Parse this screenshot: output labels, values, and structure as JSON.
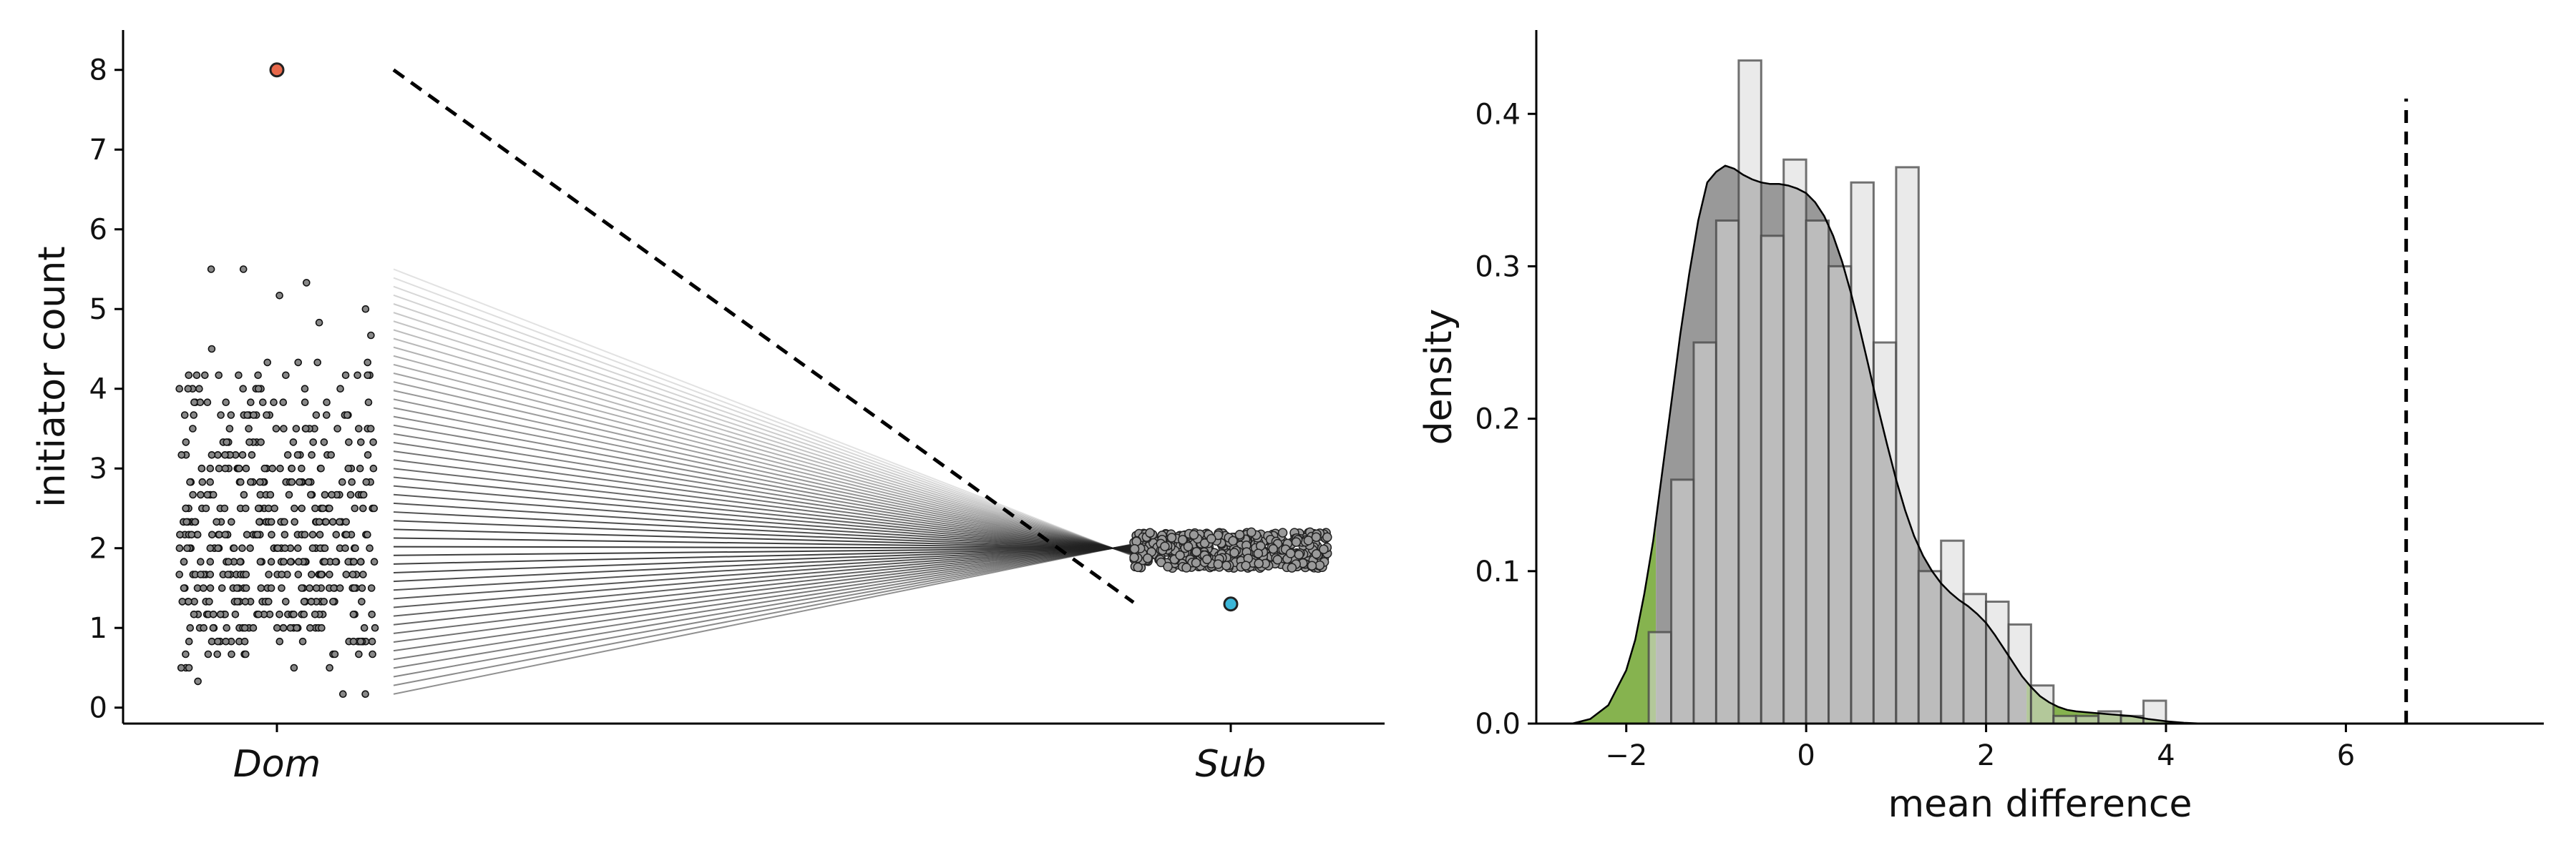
{
  "chart_data": [
    {
      "type": "scatter",
      "subtype": "paired-strip-plot",
      "title": "",
      "xlabel": "",
      "ylabel": "initiator count",
      "categories": [
        "Dom",
        "Sub"
      ],
      "ylim": [
        -0.2,
        8.5
      ],
      "yticks": [
        0,
        1,
        2,
        3,
        4,
        5,
        6,
        7,
        8
      ],
      "grid": false,
      "highlight": {
        "dom_value": 8.0,
        "sub_value": 1.3,
        "dom_color": "#e8684a",
        "sub_color": "#3bb6d8",
        "connector_style": "dashed"
      },
      "dom_jitter_values": [
        0.33,
        0.17,
        0.17,
        0.5,
        0.5,
        0.5,
        0.5,
        0.5,
        0.67,
        0.67,
        0.67,
        0.67,
        0.67,
        0.67,
        0.67,
        0.67,
        0.67,
        0.67,
        0.83,
        0.83,
        0.83,
        0.83,
        0.83,
        0.83,
        0.83,
        0.83,
        0.83,
        0.83,
        0.83,
        0.83,
        0.83,
        0.83,
        0.83,
        0.83,
        0.83,
        0.83,
        0.83,
        0.83,
        1.0,
        1.0,
        1.0,
        1.0,
        1.0,
        1.0,
        1.0,
        1.0,
        1.0,
        1.0,
        1.0,
        1.0,
        1.0,
        1.0,
        1.0,
        1.0,
        1.0,
        1.0,
        1.0,
        1.0,
        1.0,
        1.0,
        1.0,
        1.0,
        1.17,
        1.17,
        1.17,
        1.17,
        1.17,
        1.17,
        1.17,
        1.17,
        1.17,
        1.17,
        1.17,
        1.17,
        1.17,
        1.17,
        1.17,
        1.17,
        1.17,
        1.17,
        1.17,
        1.17,
        1.17,
        1.17,
        1.17,
        1.17,
        1.17,
        1.17,
        1.33,
        1.33,
        1.33,
        1.33,
        1.33,
        1.33,
        1.33,
        1.33,
        1.33,
        1.33,
        1.33,
        1.33,
        1.33,
        1.33,
        1.33,
        1.33,
        1.33,
        1.33,
        1.33,
        1.33,
        1.33,
        1.33,
        1.33,
        1.33,
        1.33,
        1.33,
        1.5,
        1.5,
        1.5,
        1.5,
        1.5,
        1.5,
        1.5,
        1.5,
        1.5,
        1.5,
        1.5,
        1.5,
        1.5,
        1.5,
        1.5,
        1.5,
        1.5,
        1.5,
        1.5,
        1.5,
        1.5,
        1.5,
        1.5,
        1.5,
        1.5,
        1.5,
        1.5,
        1.5,
        1.5,
        1.5,
        1.67,
        1.67,
        1.67,
        1.67,
        1.67,
        1.67,
        1.67,
        1.67,
        1.67,
        1.67,
        1.67,
        1.67,
        1.67,
        1.67,
        1.67,
        1.67,
        1.67,
        1.67,
        1.67,
        1.67,
        1.67,
        1.67,
        1.67,
        1.67,
        1.67,
        1.67,
        1.67,
        1.67,
        1.67,
        1.67,
        1.83,
        1.83,
        1.83,
        1.83,
        1.83,
        1.83,
        1.83,
        1.83,
        1.83,
        1.83,
        1.83,
        1.83,
        1.83,
        1.83,
        1.83,
        1.83,
        1.83,
        1.83,
        1.83,
        1.83,
        1.83,
        1.83,
        1.83,
        1.83,
        1.83,
        1.83,
        1.83,
        1.83,
        1.83,
        1.83,
        1.83,
        1.83,
        2.0,
        2.0,
        2.0,
        2.0,
        2.0,
        2.0,
        2.0,
        2.0,
        2.0,
        2.0,
        2.0,
        2.0,
        2.0,
        2.0,
        2.0,
        2.0,
        2.0,
        2.0,
        2.0,
        2.0,
        2.0,
        2.0,
        2.0,
        2.0,
        2.0,
        2.0,
        2.0,
        2.0,
        2.0,
        2.0,
        2.0,
        2.0,
        2.17,
        2.17,
        2.17,
        2.17,
        2.17,
        2.17,
        2.17,
        2.17,
        2.17,
        2.17,
        2.17,
        2.17,
        2.17,
        2.17,
        2.17,
        2.17,
        2.17,
        2.17,
        2.17,
        2.17,
        2.17,
        2.17,
        2.17,
        2.17,
        2.17,
        2.17,
        2.17,
        2.17,
        2.17,
        2.17,
        2.33,
        2.33,
        2.33,
        2.33,
        2.33,
        2.33,
        2.33,
        2.33,
        2.33,
        2.33,
        2.33,
        2.33,
        2.33,
        2.33,
        2.33,
        2.33,
        2.33,
        2.33,
        2.33,
        2.33,
        2.33,
        2.33,
        2.33,
        2.33,
        2.33,
        2.33,
        2.33,
        2.33,
        2.5,
        2.5,
        2.5,
        2.5,
        2.5,
        2.5,
        2.5,
        2.5,
        2.5,
        2.5,
        2.5,
        2.5,
        2.5,
        2.5,
        2.5,
        2.5,
        2.5,
        2.5,
        2.5,
        2.5,
        2.5,
        2.5,
        2.5,
        2.5,
        2.5,
        2.5,
        2.67,
        2.67,
        2.67,
        2.67,
        2.67,
        2.67,
        2.67,
        2.67,
        2.67,
        2.67,
        2.67,
        2.67,
        2.67,
        2.67,
        2.67,
        2.67,
        2.67,
        2.67,
        2.67,
        2.67,
        2.83,
        2.83,
        2.83,
        2.83,
        2.83,
        2.83,
        2.83,
        2.83,
        2.83,
        2.83,
        2.83,
        2.83,
        2.83,
        2.83,
        2.83,
        2.83,
        2.83,
        2.83,
        2.83,
        2.83,
        2.83,
        2.83,
        2.83,
        2.83,
        3.0,
        3.0,
        3.0,
        3.0,
        3.0,
        3.0,
        3.0,
        3.0,
        3.0,
        3.0,
        3.0,
        3.0,
        3.0,
        3.0,
        3.0,
        3.0,
        3.0,
        3.0,
        3.0,
        3.0,
        3.0,
        3.0,
        3.0,
        3.17,
        3.17,
        3.17,
        3.17,
        3.17,
        3.17,
        3.17,
        3.17,
        3.17,
        3.17,
        3.17,
        3.17,
        3.17,
        3.17,
        3.17,
        3.17,
        3.17,
        3.33,
        3.33,
        3.33,
        3.33,
        3.33,
        3.33,
        3.33,
        3.33,
        3.33,
        3.33,
        3.33,
        3.33,
        3.33,
        3.33,
        3.5,
        3.5,
        3.5,
        3.5,
        3.5,
        3.5,
        3.5,
        3.5,
        3.5,
        3.5,
        3.5,
        3.5,
        3.5,
        3.5,
        3.67,
        3.67,
        3.67,
        3.67,
        3.67,
        3.67,
        3.67,
        3.67,
        3.67,
        3.67,
        3.67,
        3.67,
        3.67,
        3.67,
        3.67,
        3.67,
        3.83,
        3.83,
        3.83,
        3.83,
        3.83,
        3.83,
        3.83,
        3.83,
        3.83,
        3.83,
        3.83,
        3.83,
        4.0,
        4.0,
        4.0,
        4.0,
        4.0,
        4.0,
        4.0,
        4.0,
        4.0,
        4.0,
        4.17,
        4.17,
        4.17,
        4.17,
        4.17,
        4.17,
        4.17,
        4.17,
        4.17,
        4.17,
        4.17,
        4.33,
        4.33,
        4.33,
        4.33,
        4.5,
        4.67,
        4.83,
        5.0,
        5.17,
        5.33,
        5.5,
        5.5
      ],
      "sub_values_range": [
        1.75,
        2.2
      ],
      "pair_line_count": 50,
      "pair_line_convergence": {
        "x_fraction": 0.95,
        "y": 2.0
      }
    },
    {
      "type": "bar",
      "subtype": "histogram-with-kde",
      "title": "",
      "xlabel": "mean difference",
      "ylabel": "density",
      "xlim": [
        -3.0,
        8.2
      ],
      "ylim": [
        0,
        0.455
      ],
      "xticks": [
        -2,
        0,
        2,
        4,
        6
      ],
      "xtick_labels": [
        "−2",
        "0",
        "2",
        "4",
        "6"
      ],
      "yticks": [
        0.0,
        0.1,
        0.2,
        0.3,
        0.4
      ],
      "ytick_labels": [
        "0.0",
        "0.1",
        "0.2",
        "0.3",
        "0.4"
      ],
      "grid": false,
      "observed_value": 6.67,
      "bin_width": 0.25,
      "bin_left_edges": [
        -1.75,
        -1.5,
        -1.25,
        -1.0,
        -0.75,
        -0.5,
        -0.25,
        0.0,
        0.25,
        0.5,
        0.75,
        1.0,
        1.25,
        1.5,
        1.75,
        2.0,
        2.25,
        2.5,
        2.75,
        3.0,
        3.25,
        3.5,
        3.75
      ],
      "bin_density": [
        0.06,
        0.16,
        0.25,
        0.33,
        0.435,
        0.32,
        0.37,
        0.33,
        0.3,
        0.355,
        0.25,
        0.365,
        0.1,
        0.12,
        0.085,
        0.08,
        0.065,
        0.025,
        0.005,
        0.005,
        0.008,
        0.005,
        0.015
      ],
      "kde_x": [
        -2.6,
        -2.4,
        -2.2,
        -2.0,
        -1.9,
        -1.8,
        -1.7,
        -1.6,
        -1.5,
        -1.4,
        -1.3,
        -1.2,
        -1.1,
        -1.0,
        -0.9,
        -0.8,
        -0.7,
        -0.6,
        -0.5,
        -0.4,
        -0.3,
        -0.2,
        -0.1,
        0.0,
        0.1,
        0.2,
        0.3,
        0.4,
        0.5,
        0.6,
        0.7,
        0.8,
        0.9,
        1.0,
        1.1,
        1.2,
        1.3,
        1.4,
        1.5,
        1.6,
        1.7,
        1.8,
        1.9,
        2.0,
        2.1,
        2.2,
        2.3,
        2.4,
        2.5,
        2.6,
        2.7,
        2.8,
        2.9,
        3.0,
        3.2,
        3.4,
        3.6,
        3.8,
        4.0,
        4.2,
        4.4
      ],
      "kde_y": [
        0.0,
        0.003,
        0.012,
        0.035,
        0.055,
        0.085,
        0.12,
        0.165,
        0.21,
        0.255,
        0.295,
        0.33,
        0.355,
        0.362,
        0.366,
        0.364,
        0.36,
        0.357,
        0.355,
        0.354,
        0.354,
        0.353,
        0.351,
        0.348,
        0.342,
        0.333,
        0.32,
        0.303,
        0.282,
        0.258,
        0.233,
        0.207,
        0.183,
        0.16,
        0.14,
        0.123,
        0.11,
        0.1,
        0.092,
        0.086,
        0.081,
        0.077,
        0.072,
        0.066,
        0.058,
        0.049,
        0.04,
        0.031,
        0.024,
        0.018,
        0.014,
        0.011,
        0.009,
        0.008,
        0.007,
        0.006,
        0.005,
        0.003,
        0.0015,
        0.0005,
        0.0
      ],
      "tail_shading": {
        "lower_below": -1.67,
        "upper_above": 2.45,
        "color": "#86b34f"
      },
      "colors": {
        "bars_fill": "#d9d9d9",
        "kde_fill": "#999999",
        "edge": "#444444"
      }
    }
  ],
  "panels": {
    "left": {
      "ylabel": "initiator count",
      "yticks": [
        "0",
        "1",
        "2",
        "3",
        "4",
        "5",
        "6",
        "7",
        "8"
      ],
      "categories": [
        "Dom",
        "Sub"
      ]
    },
    "right": {
      "xlabel": "mean difference",
      "ylabel": "density",
      "xticks": [
        "−2",
        "0",
        "2",
        "4",
        "6"
      ],
      "yticks": [
        "0.0",
        "0.1",
        "0.2",
        "0.3",
        "0.4"
      ]
    }
  }
}
